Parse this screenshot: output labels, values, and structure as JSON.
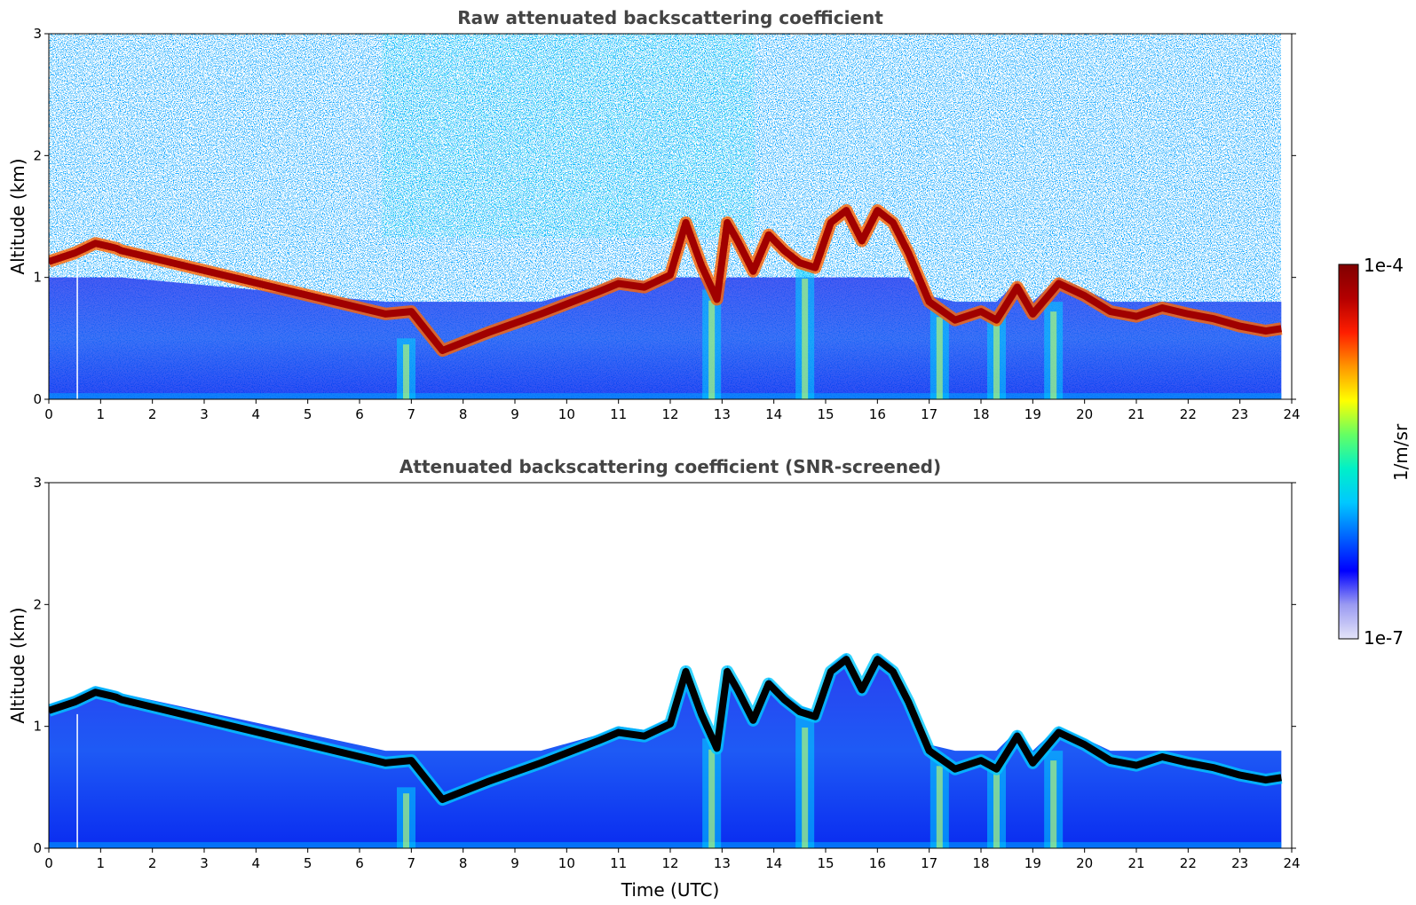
{
  "chart_data": [
    {
      "type": "heatmap",
      "title": "Raw attenuated backscattering coefficient",
      "xlabel": "",
      "ylabel": "Altitude (km)",
      "xlim": [
        0,
        24
      ],
      "ylim": [
        0,
        3
      ],
      "xticks": [
        "0",
        "1",
        "2",
        "3",
        "4",
        "5",
        "6",
        "7",
        "8",
        "9",
        "10",
        "11",
        "12",
        "13",
        "14",
        "15",
        "16",
        "17",
        "18",
        "19",
        "20",
        "21",
        "22",
        "23",
        "24"
      ],
      "yticks": [
        "0",
        "1",
        "2",
        "3"
      ],
      "data_time_end": 23.8,
      "noise": true,
      "cloud_layer": {
        "time": [
          0,
          0.5,
          0.9,
          1.3,
          1.4,
          6.5,
          7,
          7.6,
          8.5,
          9.5,
          10.6,
          11,
          11.5,
          12,
          12.3,
          12.6,
          12.9,
          13.1,
          13.3,
          13.6,
          13.9,
          14.2,
          14.5,
          14.8,
          15.1,
          15.4,
          15.7,
          16,
          16.3,
          16.6,
          17,
          17.5,
          18,
          18.3,
          18.7,
          19,
          19.5,
          20,
          20.5,
          21,
          21.5,
          22,
          22.5,
          23,
          23.5,
          23.8
        ],
        "altitude_km": [
          1.13,
          1.2,
          1.28,
          1.24,
          1.22,
          0.7,
          0.72,
          0.4,
          0.55,
          0.7,
          0.88,
          0.95,
          0.92,
          1.02,
          1.45,
          1.1,
          0.82,
          1.45,
          1.3,
          1.05,
          1.35,
          1.22,
          1.12,
          1.08,
          1.45,
          1.55,
          1.3,
          1.55,
          1.45,
          1.2,
          0.8,
          0.65,
          0.72,
          0.65,
          0.92,
          0.7,
          0.95,
          0.85,
          0.72,
          0.68,
          0.75,
          0.7,
          0.66,
          0.6,
          0.56,
          0.58
        ]
      }
    },
    {
      "type": "heatmap",
      "title": "Attenuated backscattering coefficient (SNR-screened)",
      "xlabel": "Time (UTC)",
      "ylabel": "Altitude (km)",
      "xlim": [
        0,
        24
      ],
      "ylim": [
        0,
        3
      ],
      "xticks": [
        "0",
        "1",
        "2",
        "3",
        "4",
        "5",
        "6",
        "7",
        "8",
        "9",
        "10",
        "11",
        "12",
        "13",
        "14",
        "15",
        "16",
        "17",
        "18",
        "19",
        "20",
        "21",
        "22",
        "23",
        "24"
      ],
      "yticks": [
        "0",
        "1",
        "2",
        "3"
      ],
      "data_time_end": 23.8,
      "noise": false,
      "cloud_layer": "same as raw panel"
    }
  ],
  "colorbar": {
    "label": "1/m/sr",
    "max_label": "1e-4",
    "min_label": "1e-7",
    "scale": "log",
    "colors": [
      "#e4e4f8",
      "#9a9af2",
      "#0000ff",
      "#0064ff",
      "#00c8ff",
      "#00f0c8",
      "#64ff64",
      "#ffff00",
      "#ff9600",
      "#ff1e00",
      "#b40000",
      "#800000"
    ]
  }
}
